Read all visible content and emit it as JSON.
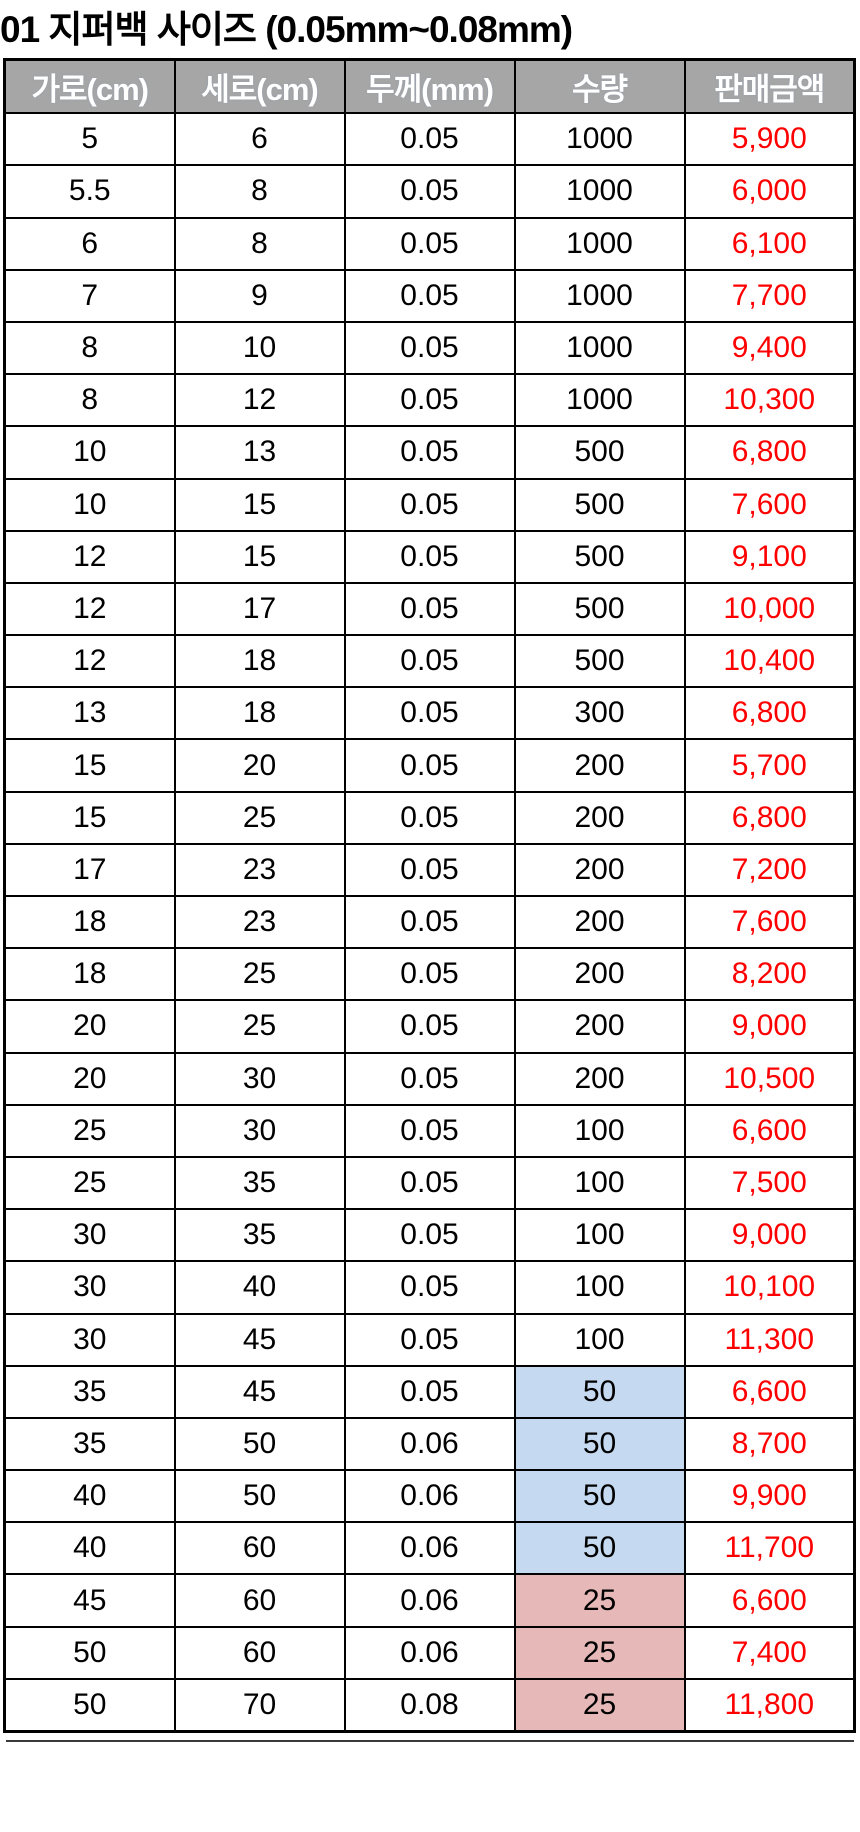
{
  "title": "01 지퍼백 사이즈 (0.05mm~0.08mm)",
  "colors": {
    "header_bg": "#a6a6a6",
    "header_text": "#ffffff",
    "price_text": "#ff0000",
    "qty_blue": "#c5d9f1",
    "qty_pink": "#e6b9b8",
    "border_color": "#000000",
    "title_color": "#000000",
    "page_bg": "#ffffff"
  },
  "chart_data": {
    "type": "table",
    "title": "01 지퍼백 사이즈 (0.05mm~0.08mm)",
    "columns": [
      "가로(cm)",
      "세로(cm)",
      "두께(mm)",
      "수량",
      "판매금액"
    ],
    "column_keys": [
      "width-cm",
      "height-cm",
      "thickness-mm",
      "quantity",
      "price"
    ],
    "legend": {
      "qty_blue_meaning": "수량 50 강조(파랑)",
      "qty_pink_meaning": "수량 25 강조(분홍)"
    },
    "rows": [
      {
        "values": [
          "5",
          "6",
          "0.05",
          "1000",
          "5,900"
        ],
        "qty_bg": null
      },
      {
        "values": [
          "5.5",
          "8",
          "0.05",
          "1000",
          "6,000"
        ],
        "qty_bg": null
      },
      {
        "values": [
          "6",
          "8",
          "0.05",
          "1000",
          "6,100"
        ],
        "qty_bg": null
      },
      {
        "values": [
          "7",
          "9",
          "0.05",
          "1000",
          "7,700"
        ],
        "qty_bg": null
      },
      {
        "values": [
          "8",
          "10",
          "0.05",
          "1000",
          "9,400"
        ],
        "qty_bg": null
      },
      {
        "values": [
          "8",
          "12",
          "0.05",
          "1000",
          "10,300"
        ],
        "qty_bg": null
      },
      {
        "values": [
          "10",
          "13",
          "0.05",
          "500",
          "6,800"
        ],
        "qty_bg": null
      },
      {
        "values": [
          "10",
          "15",
          "0.05",
          "500",
          "7,600"
        ],
        "qty_bg": null
      },
      {
        "values": [
          "12",
          "15",
          "0.05",
          "500",
          "9,100"
        ],
        "qty_bg": null
      },
      {
        "values": [
          "12",
          "17",
          "0.05",
          "500",
          "10,000"
        ],
        "qty_bg": null
      },
      {
        "values": [
          "12",
          "18",
          "0.05",
          "500",
          "10,400"
        ],
        "qty_bg": null
      },
      {
        "values": [
          "13",
          "18",
          "0.05",
          "300",
          "6,800"
        ],
        "qty_bg": null
      },
      {
        "values": [
          "15",
          "20",
          "0.05",
          "200",
          "5,700"
        ],
        "qty_bg": null
      },
      {
        "values": [
          "15",
          "25",
          "0.05",
          "200",
          "6,800"
        ],
        "qty_bg": null
      },
      {
        "values": [
          "17",
          "23",
          "0.05",
          "200",
          "7,200"
        ],
        "qty_bg": null
      },
      {
        "values": [
          "18",
          "23",
          "0.05",
          "200",
          "7,600"
        ],
        "qty_bg": null
      },
      {
        "values": [
          "18",
          "25",
          "0.05",
          "200",
          "8,200"
        ],
        "qty_bg": null
      },
      {
        "values": [
          "20",
          "25",
          "0.05",
          "200",
          "9,000"
        ],
        "qty_bg": null
      },
      {
        "values": [
          "20",
          "30",
          "0.05",
          "200",
          "10,500"
        ],
        "qty_bg": null
      },
      {
        "values": [
          "25",
          "30",
          "0.05",
          "100",
          "6,600"
        ],
        "qty_bg": null
      },
      {
        "values": [
          "25",
          "35",
          "0.05",
          "100",
          "7,500"
        ],
        "qty_bg": null
      },
      {
        "values": [
          "30",
          "35",
          "0.05",
          "100",
          "9,000"
        ],
        "qty_bg": null
      },
      {
        "values": [
          "30",
          "40",
          "0.05",
          "100",
          "10,100"
        ],
        "qty_bg": null
      },
      {
        "values": [
          "30",
          "45",
          "0.05",
          "100",
          "11,300"
        ],
        "qty_bg": null
      },
      {
        "values": [
          "35",
          "45",
          "0.05",
          "50",
          "6,600"
        ],
        "qty_bg": "blue"
      },
      {
        "values": [
          "35",
          "50",
          "0.06",
          "50",
          "8,700"
        ],
        "qty_bg": "blue"
      },
      {
        "values": [
          "40",
          "50",
          "0.06",
          "50",
          "9,900"
        ],
        "qty_bg": "blue"
      },
      {
        "values": [
          "40",
          "60",
          "0.06",
          "50",
          "11,700"
        ],
        "qty_bg": "blue"
      },
      {
        "values": [
          "45",
          "60",
          "0.06",
          "25",
          "6,600"
        ],
        "qty_bg": "pink"
      },
      {
        "values": [
          "50",
          "60",
          "0.06",
          "25",
          "7,400"
        ],
        "qty_bg": "pink"
      },
      {
        "values": [
          "50",
          "70",
          "0.08",
          "25",
          "11,800"
        ],
        "qty_bg": "pink"
      }
    ]
  }
}
